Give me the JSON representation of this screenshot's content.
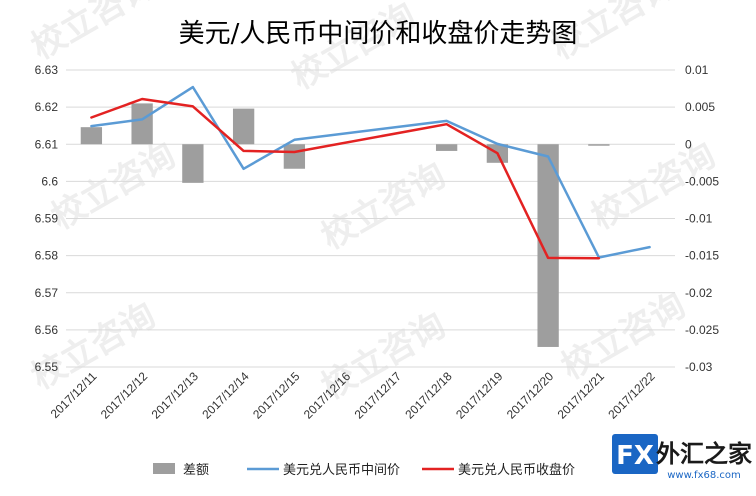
{
  "chart_data": {
    "type": "bar+line",
    "title": "美元/人民币中间价和收盘价走势图",
    "categories": [
      "2017/12/11",
      "2017/12/12",
      "2017/12/13",
      "2017/12/14",
      "2017/12/15",
      "2017/12/16",
      "2017/12/17",
      "2017/12/18",
      "2017/12/19",
      "2017/12/20",
      "2017/12/21",
      "2017/12/22"
    ],
    "left_axis": {
      "ylim": [
        6.55,
        6.63
      ],
      "ticks": [
        "6.55",
        "6.56",
        "6.57",
        "6.58",
        "6.59",
        "6.6",
        "6.61",
        "6.62",
        "6.63"
      ]
    },
    "right_axis": {
      "ylim": [
        -0.03,
        0.01
      ],
      "ticks": [
        "-0.03",
        "-0.025",
        "-0.02",
        "-0.015",
        "-0.01",
        "-0.005",
        "0",
        "0.005",
        "0.01"
      ]
    },
    "series": [
      {
        "name": "差额",
        "type": "bar",
        "axis": "right",
        "color": "#9e9e9e",
        "values": [
          0.0023,
          0.0055,
          -0.0052,
          0.0048,
          -0.0033,
          null,
          null,
          -0.0009,
          -0.0025,
          -0.0273,
          -0.0002,
          null
        ]
      },
      {
        "name": "美元兑人民币中间价",
        "type": "line",
        "axis": "left",
        "color": "#5b9bd5",
        "values": [
          6.6149,
          6.6167,
          6.6254,
          6.6034,
          6.6112,
          null,
          null,
          6.6163,
          6.6101,
          6.6067,
          6.5795,
          6.5823
        ]
      },
      {
        "name": "美元兑人民币收盘价",
        "type": "line",
        "axis": "left",
        "color": "#e32222",
        "values": [
          6.6172,
          6.6222,
          6.6202,
          6.6082,
          6.6079,
          null,
          null,
          6.6154,
          6.6076,
          6.5794,
          6.5793,
          null
        ]
      }
    ],
    "connect_gaps": true,
    "grid": "horizontal",
    "legend": "bottom"
  },
  "watermark": {
    "text": "校立咨询"
  },
  "logo": {
    "fx": "FX",
    "name": "外汇之家",
    "url": "www.fx68.com"
  }
}
